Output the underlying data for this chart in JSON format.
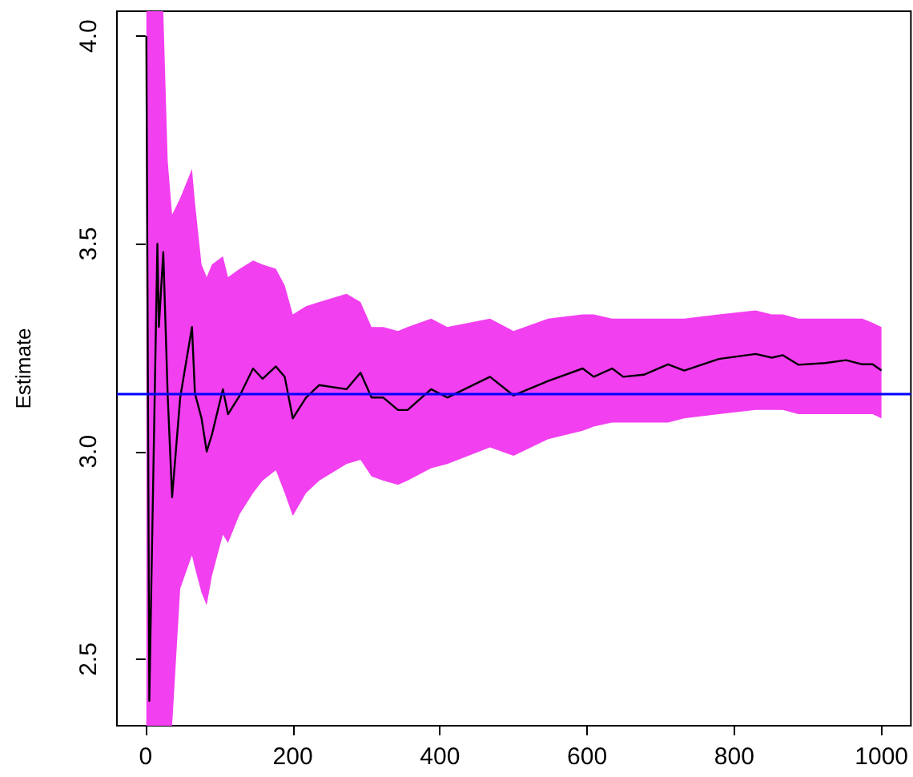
{
  "chart_data": {
    "type": "line",
    "ylabel": "Estimate",
    "xlim": [
      -39,
      1040
    ],
    "xticks": [
      0,
      200,
      400,
      600,
      800,
      1000
    ],
    "ylim": [
      2.34,
      4.06
    ],
    "yticks": [
      2.5,
      {
        "value": 3,
        "label": "3.0"
      },
      3.5,
      {
        "value": 4,
        "label": "4.0"
      }
    ],
    "grid": false,
    "marker": "none",
    "line_style": "solid",
    "series": [
      {
        "color": "#000000",
        "x": [
          1,
          5,
          16,
          18,
          24,
          30,
          36,
          47,
          63,
          67,
          76,
          83,
          90,
          105,
          112,
          128,
          146,
          159,
          177,
          189,
          200,
          218,
          236,
          273,
          292,
          307,
          323,
          343,
          356,
          388,
          410,
          468,
          500,
          547,
          594,
          609,
          634,
          649,
          677,
          710,
          732,
          779,
          829,
          851,
          866,
          887,
          923,
          952,
          974,
          988,
          1000
        ],
        "values": [
          4.0,
          2.4,
          3.5,
          3.3,
          3.48,
          3.135,
          2.89,
          3.13,
          3.3,
          3.14,
          3.08,
          3.0,
          3.04,
          3.15,
          3.09,
          3.135,
          3.2,
          3.175,
          3.205,
          3.18,
          3.08,
          3.13,
          3.16,
          3.15,
          3.19,
          3.13,
          3.13,
          3.1,
          3.1,
          3.15,
          3.13,
          3.18,
          3.135,
          3.17,
          3.2,
          3.18,
          3.2,
          3.18,
          3.185,
          3.21,
          3.195,
          3.223,
          3.235,
          3.226,
          3.232,
          3.209,
          3.213,
          3.22,
          3.21,
          3.21,
          3.195
        ],
        "upper": [
          4.06,
          4.06,
          4.06,
          4.06,
          4.06,
          3.7,
          3.57,
          3.61,
          3.68,
          3.6,
          3.45,
          3.42,
          3.45,
          3.47,
          3.42,
          3.44,
          3.46,
          3.45,
          3.44,
          3.4,
          3.33,
          3.35,
          3.36,
          3.38,
          3.36,
          3.3,
          3.3,
          3.29,
          3.3,
          3.32,
          3.3,
          3.32,
          3.29,
          3.32,
          3.33,
          3.33,
          3.32,
          3.32,
          3.32,
          3.32,
          3.32,
          3.33,
          3.34,
          3.33,
          3.33,
          3.32,
          3.32,
          3.32,
          3.32,
          3.31,
          3.3
        ],
        "lower": [
          2.34,
          2.34,
          2.34,
          2.34,
          2.34,
          2.34,
          2.34,
          2.67,
          2.75,
          2.72,
          2.66,
          2.63,
          2.7,
          2.8,
          2.78,
          2.85,
          2.9,
          2.93,
          2.955,
          2.9,
          2.845,
          2.9,
          2.93,
          2.97,
          2.98,
          2.94,
          2.93,
          2.92,
          2.93,
          2.96,
          2.97,
          3.01,
          2.99,
          3.03,
          3.05,
          3.06,
          3.07,
          3.07,
          3.07,
          3.07,
          3.08,
          3.09,
          3.1,
          3.1,
          3.1,
          3.09,
          3.09,
          3.09,
          3.09,
          3.09,
          3.08
        ]
      }
    ],
    "ref_lines": [
      {
        "axis": "y",
        "value": 3.1416,
        "label": null,
        "color": "#0000ff",
        "line_style": "solid"
      }
    ]
  }
}
